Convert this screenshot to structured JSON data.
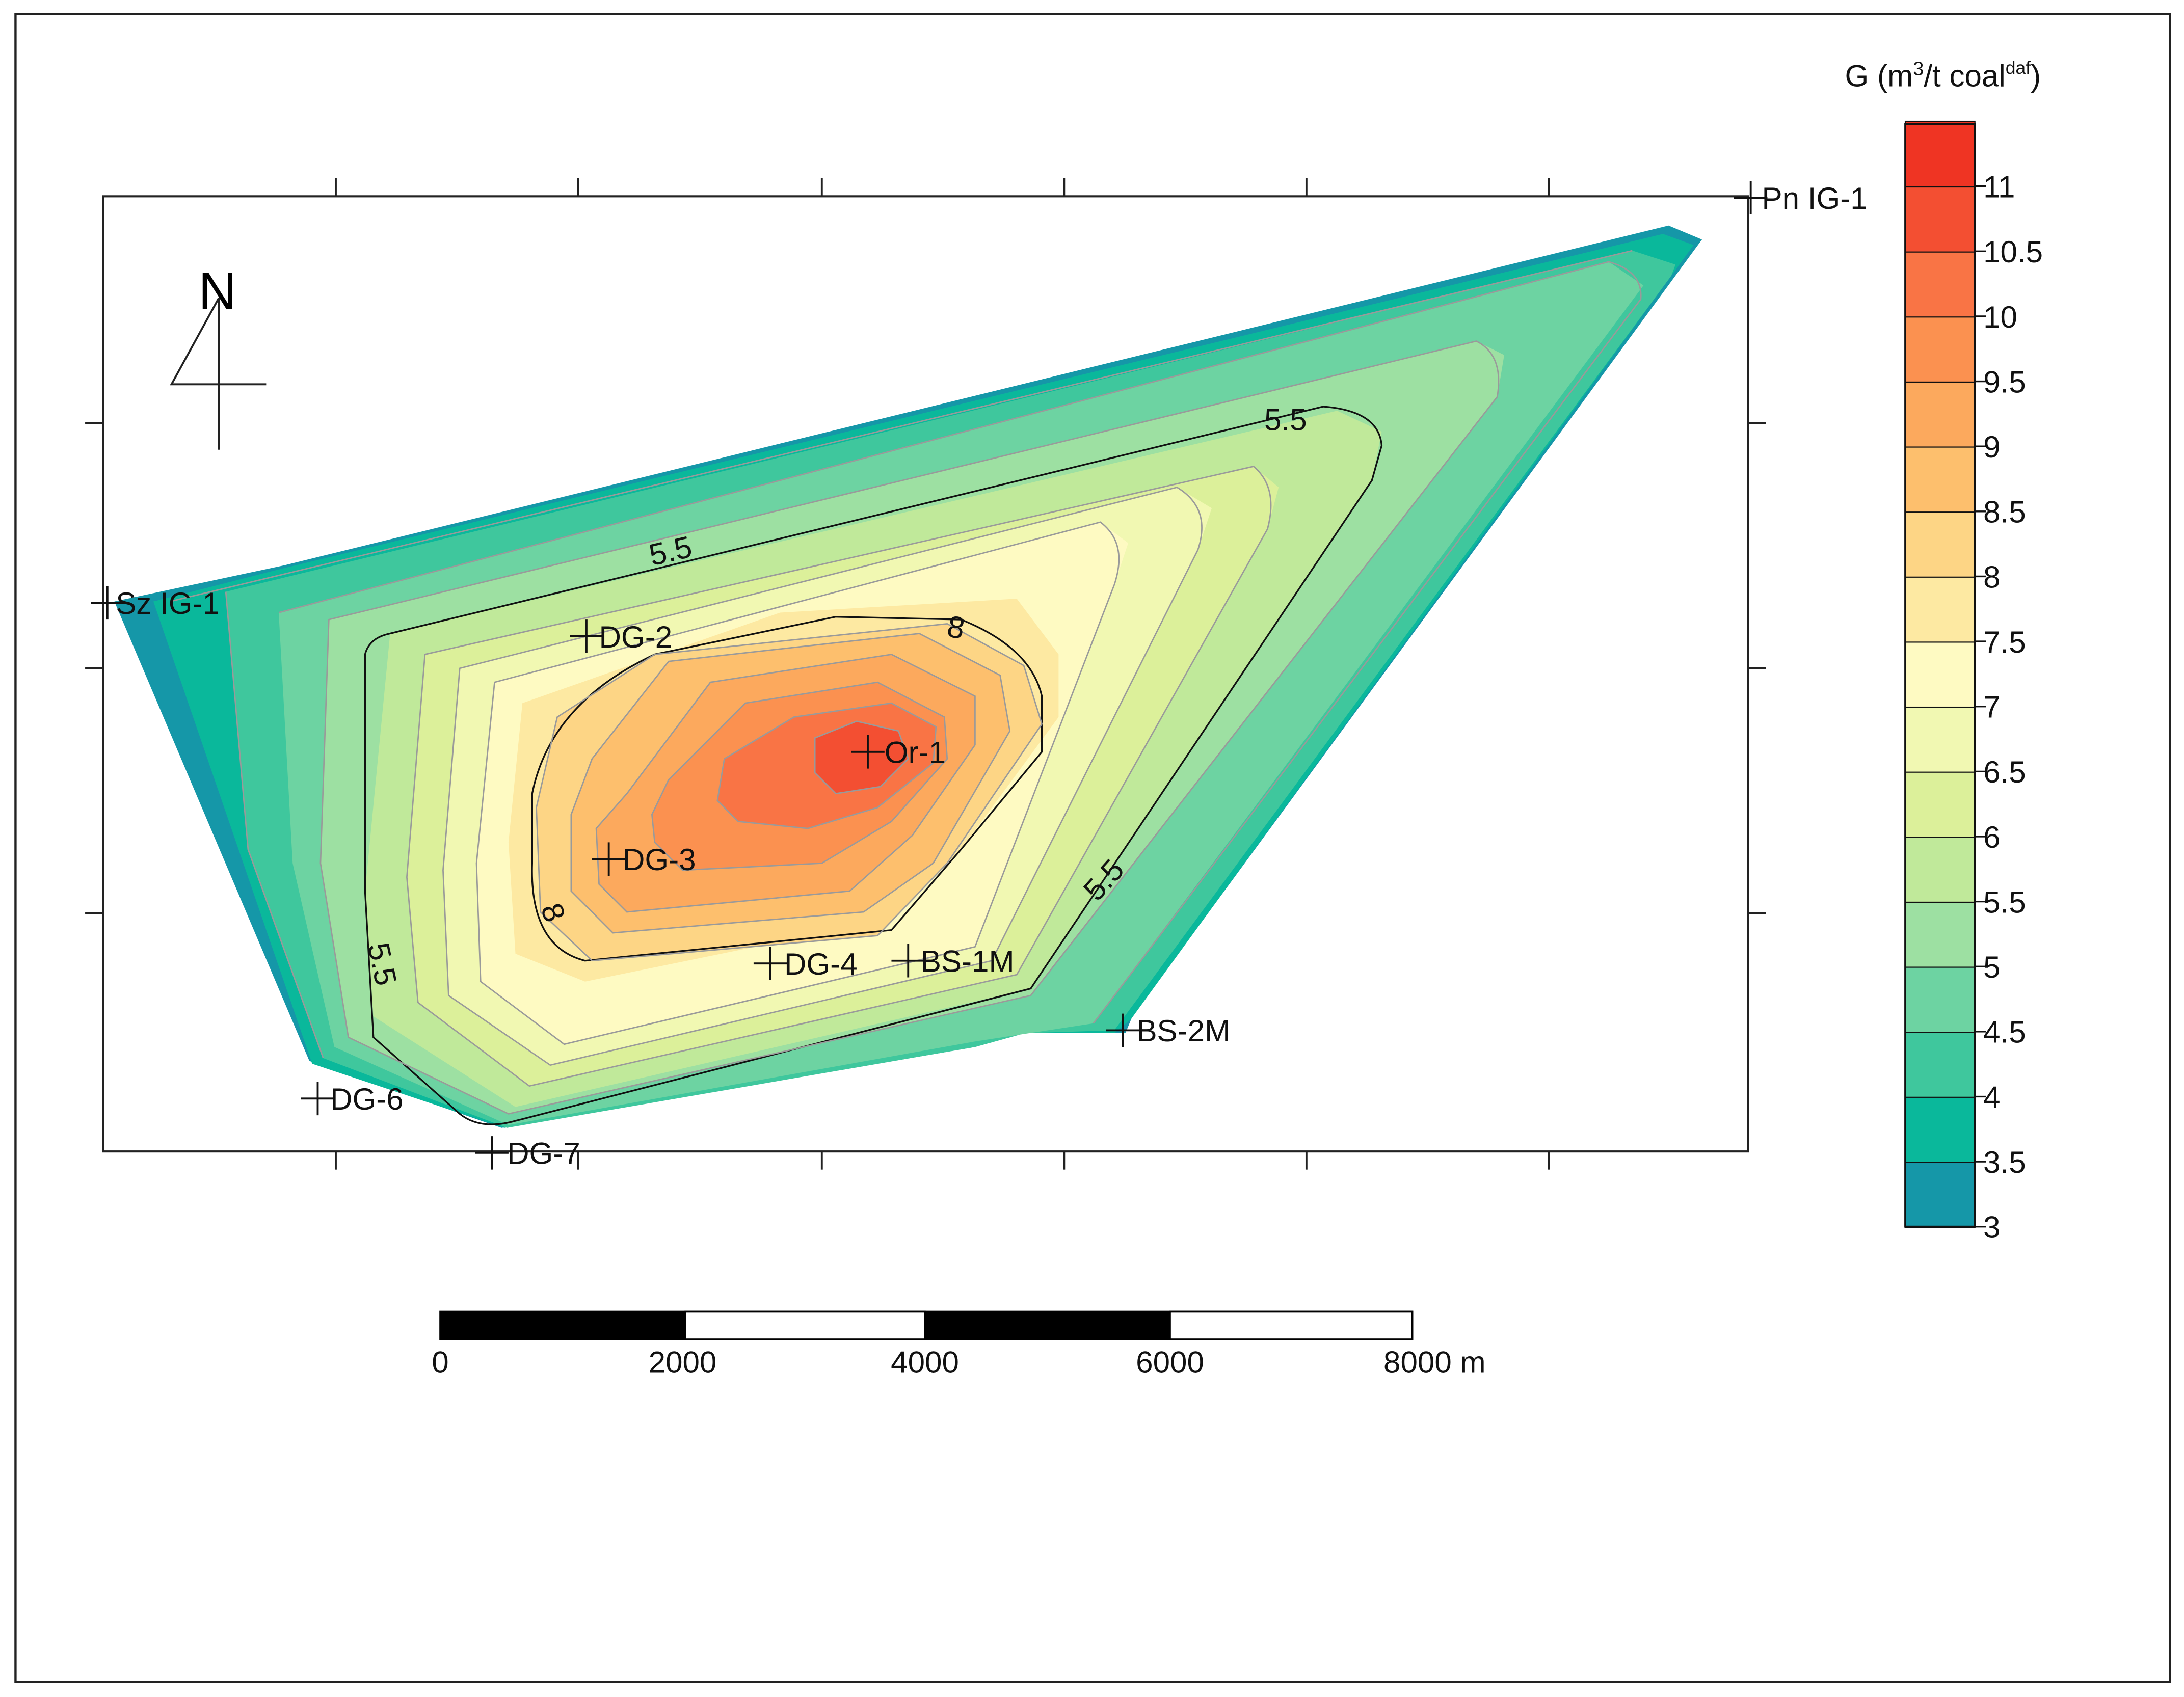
{
  "north_arrow": {
    "label": "N"
  },
  "legend": {
    "title_main": "G (m",
    "title_exp": "3",
    "title_mid": "/t coal",
    "title_sup": "daf",
    "title_end": ")",
    "levels": [
      {
        "value": "3",
        "color": "#1a7bb8"
      },
      {
        "value": "3.5",
        "color": "#1597a8"
      },
      {
        "value": "4",
        "color": "#0ab89b"
      },
      {
        "value": "4.5",
        "color": "#3fc79d"
      },
      {
        "value": "5",
        "color": "#6dd3a2"
      },
      {
        "value": "5.5",
        "color": "#9de0a2"
      },
      {
        "value": "6",
        "color": "#c0e99a"
      },
      {
        "value": "6.5",
        "color": "#dcf09a"
      },
      {
        "value": "7",
        "color": "#f1f8b2"
      },
      {
        "value": "7.5",
        "color": "#fefac2"
      },
      {
        "value": "8",
        "color": "#fde9a2"
      },
      {
        "value": "8.5",
        "color": "#fdd585"
      },
      {
        "value": "9",
        "color": "#fdbf6d"
      },
      {
        "value": "9.5",
        "color": "#fca95d"
      },
      {
        "value": "10",
        "color": "#fb9150"
      },
      {
        "value": "10.5",
        "color": "#f97445"
      },
      {
        "value": "11",
        "color": "#f34f32"
      }
    ],
    "top_color": "#ef3423"
  },
  "wells": [
    {
      "name": "Sz IG-1"
    },
    {
      "name": "Pn IG-1"
    },
    {
      "name": "DG-2"
    },
    {
      "name": "Or-1"
    },
    {
      "name": "DG-3"
    },
    {
      "name": "DG-4"
    },
    {
      "name": "BS-1M"
    },
    {
      "name": "BS-2M"
    },
    {
      "name": "DG-6"
    },
    {
      "name": "DG-7"
    }
  ],
  "contour_labels": [
    {
      "text": "5.5"
    },
    {
      "text": "5.5"
    },
    {
      "text": "5.5"
    },
    {
      "text": "5.5"
    },
    {
      "text": "8"
    },
    {
      "text": "8"
    }
  ],
  "scale_bar": {
    "ticks": [
      "0",
      "2000",
      "4000",
      "6000",
      "8000 m"
    ],
    "unit": "m"
  }
}
